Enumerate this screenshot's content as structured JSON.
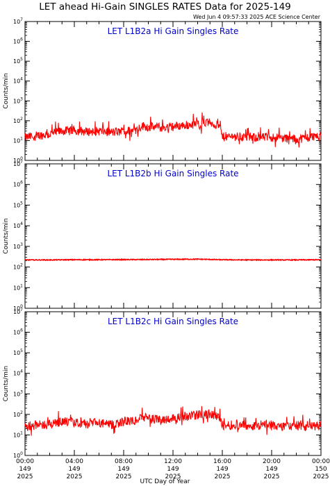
{
  "title": "LET ahead Hi-Gain SINGLES RATES Data for 2025-149",
  "subtitle": "Wed Jun  4 09:57:33 2025 ACE Science Center",
  "xlabel": "UTC Day of Year",
  "colors": {
    "trace": "#ff0000",
    "panel_title": "#0000cc",
    "axes": "#000000"
  },
  "x_ticks": [
    {
      "hour": 0,
      "time": "00:00",
      "day": "149",
      "year": "2025"
    },
    {
      "hour": 4,
      "time": "04:00",
      "day": "149",
      "year": "2025"
    },
    {
      "hour": 8,
      "time": "08:00",
      "day": "149",
      "year": "2025"
    },
    {
      "hour": 12,
      "time": "12:00",
      "day": "149",
      "year": "2025"
    },
    {
      "hour": 16,
      "time": "16:00",
      "day": "149",
      "year": "2025"
    },
    {
      "hour": 20,
      "time": "20:00",
      "day": "149",
      "year": "2025"
    },
    {
      "hour": 24,
      "time": "00:00",
      "day": "150",
      "year": "2025"
    }
  ],
  "chart_data": [
    {
      "type": "line",
      "title": "LET L1B2a Hi Gain Singles Rate",
      "ylabel": "Counts/min",
      "yscale": "log",
      "ylim": [
        1,
        10000000
      ],
      "xlim": [
        0,
        24
      ],
      "grid": false,
      "series": [
        {
          "x": [
            0,
            1,
            2,
            3,
            4,
            5,
            6,
            7,
            8,
            9,
            9.5,
            10,
            11,
            12,
            13,
            14,
            15,
            15.7,
            16,
            17,
            18,
            19,
            20,
            21,
            22,
            23,
            24
          ],
          "values": [
            14,
            18,
            20,
            30,
            32,
            28,
            30,
            26,
            28,
            33,
            55,
            50,
            45,
            50,
            60,
            70,
            80,
            55,
            15,
            16,
            15,
            14,
            15,
            13,
            12,
            14,
            20
          ]
        }
      ]
    },
    {
      "type": "line",
      "title": "LET L1B2b Hi Gain Singles Rate",
      "ylabel": "Counts/min",
      "yscale": "log",
      "ylim": [
        1,
        10000000
      ],
      "xlim": [
        0,
        24
      ],
      "grid": false,
      "series": [
        {
          "x": [
            0,
            2,
            4,
            6,
            8,
            10,
            12,
            14,
            16,
            18,
            20,
            22,
            24
          ],
          "values": [
            220,
            220,
            225,
            225,
            228,
            230,
            235,
            240,
            225,
            220,
            220,
            220,
            225
          ]
        }
      ]
    },
    {
      "type": "line",
      "title": "LET L1B2c Hi Gain Singles Rate",
      "ylabel": "Counts/min",
      "yscale": "log",
      "ylim": [
        1,
        10000000
      ],
      "xlim": [
        0,
        24
      ],
      "grid": false,
      "series": [
        {
          "x": [
            0,
            1,
            2,
            3,
            4,
            5,
            6,
            7,
            8,
            9,
            9.5,
            10,
            11,
            12,
            13,
            14,
            15,
            15.7,
            16,
            17,
            18,
            19,
            20,
            21,
            22,
            23,
            24
          ],
          "values": [
            28,
            30,
            32,
            45,
            40,
            32,
            38,
            30,
            45,
            50,
            80,
            60,
            55,
            65,
            80,
            95,
            100,
            70,
            30,
            30,
            28,
            28,
            30,
            25,
            28,
            25,
            28
          ]
        }
      ]
    }
  ]
}
